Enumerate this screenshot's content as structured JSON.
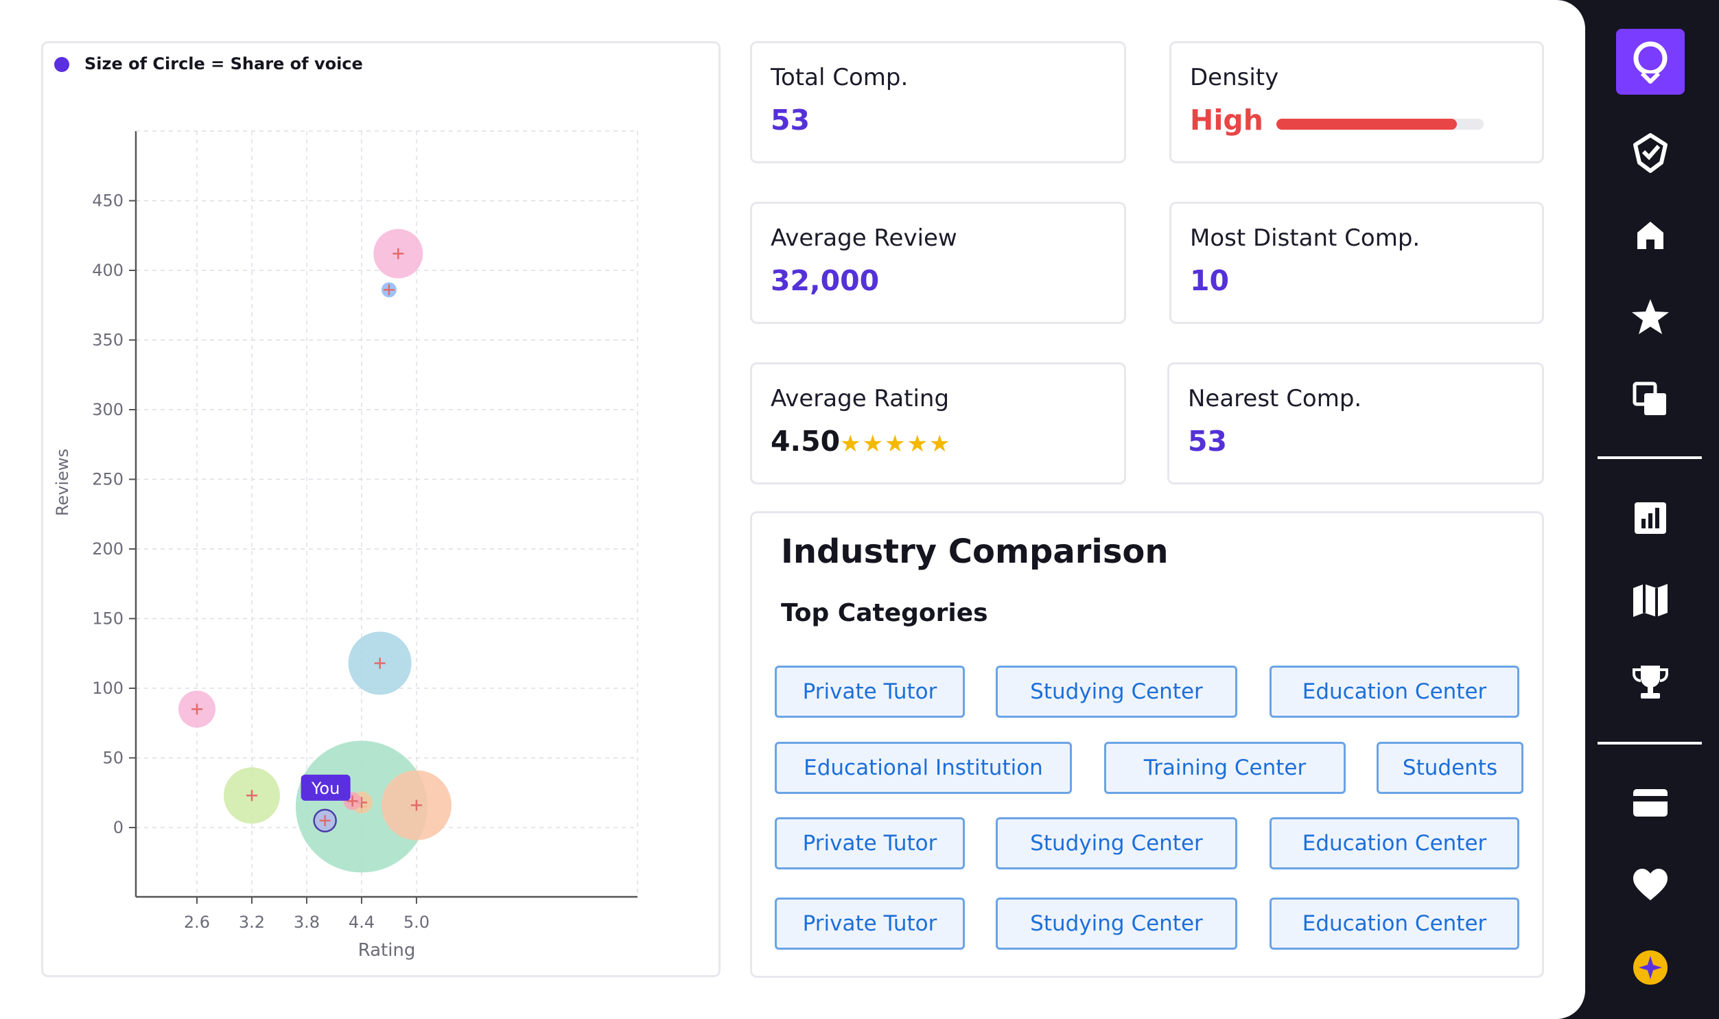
{
  "chart_data": {
    "type": "scatter",
    "legend": "Size of Circle = Share of voice",
    "xlabel": "Rating",
    "ylabel": "Reviews",
    "xlim": [
      2.2,
      5.4
    ],
    "ylim": [
      -50,
      500
    ],
    "xticks": [
      "2.6",
      "3.2",
      "3.8",
      "4.4",
      "5.0"
    ],
    "yticks": [
      "450",
      "400",
      "350",
      "300",
      "250",
      "200",
      "150",
      "100",
      "50",
      "0"
    ],
    "points": [
      {
        "x": 4.8,
        "y": 412,
        "size": 36,
        "color": "#f7b6d8"
      },
      {
        "x": 4.7,
        "y": 386,
        "size": 11,
        "color": "#8cb8f5"
      },
      {
        "x": 2.6,
        "y": 85,
        "size": 27,
        "color": "#f7b6d8"
      },
      {
        "x": 3.2,
        "y": 23,
        "size": 41,
        "color": "#cfeaa6"
      },
      {
        "x": 4.6,
        "y": 118,
        "size": 46,
        "color": "#a9d5e5"
      },
      {
        "x": 4.4,
        "y": 15,
        "size": 96,
        "color": "#a6e1c6"
      },
      {
        "x": 5.0,
        "y": 16,
        "size": 51,
        "color": "#fac4a6"
      },
      {
        "x": 4.3,
        "y": 19,
        "size": 13,
        "color": "#f7a6b5"
      },
      {
        "x": 4.4,
        "y": 18,
        "size": 16,
        "color": "#f3c99e"
      },
      {
        "x": 4.0,
        "y": 5,
        "size": 16,
        "color": "#b3b7ea",
        "label": "You"
      }
    ]
  },
  "stats": {
    "total_comp": {
      "label": "Total Comp.",
      "value": "53"
    },
    "density": {
      "label": "Density",
      "value": "High",
      "level": 0.87
    },
    "avg_review": {
      "label": "Average Review",
      "value": "32,000"
    },
    "most_distant": {
      "label": "Most Distant Comp.",
      "value": "10"
    },
    "avg_rating": {
      "label": "Average Rating",
      "value": "4.50",
      "stars": 5
    },
    "nearest": {
      "label": "Nearest Comp.",
      "value": "53"
    }
  },
  "industry": {
    "title": "Industry Comparison",
    "subtitle": "Top Categories",
    "tags": [
      [
        "Private Tutor",
        "Studying Center",
        "Education Center"
      ],
      [
        "Educational Institution",
        "Training Center",
        "Students"
      ],
      [
        "Private Tutor",
        "Studying Center",
        "Education Center"
      ],
      [
        "Private Tutor",
        "Studying Center",
        "Education Center"
      ]
    ]
  },
  "colors": {
    "accent": "#5431d8",
    "density_high": "#e84646",
    "star": "#f5b800",
    "tag_text": "#1c6fd8",
    "sidebar_bg": "#15151f",
    "logo_bg": "#7a3cff"
  },
  "sidebar": {
    "icons": [
      "logo-icon",
      "badge-check-icon",
      "home-icon",
      "star-icon",
      "copy-icon",
      "bar-chart-icon",
      "map-icon",
      "trophy-icon",
      "credit-card-icon",
      "heart-icon",
      "sparkle-icon"
    ]
  }
}
